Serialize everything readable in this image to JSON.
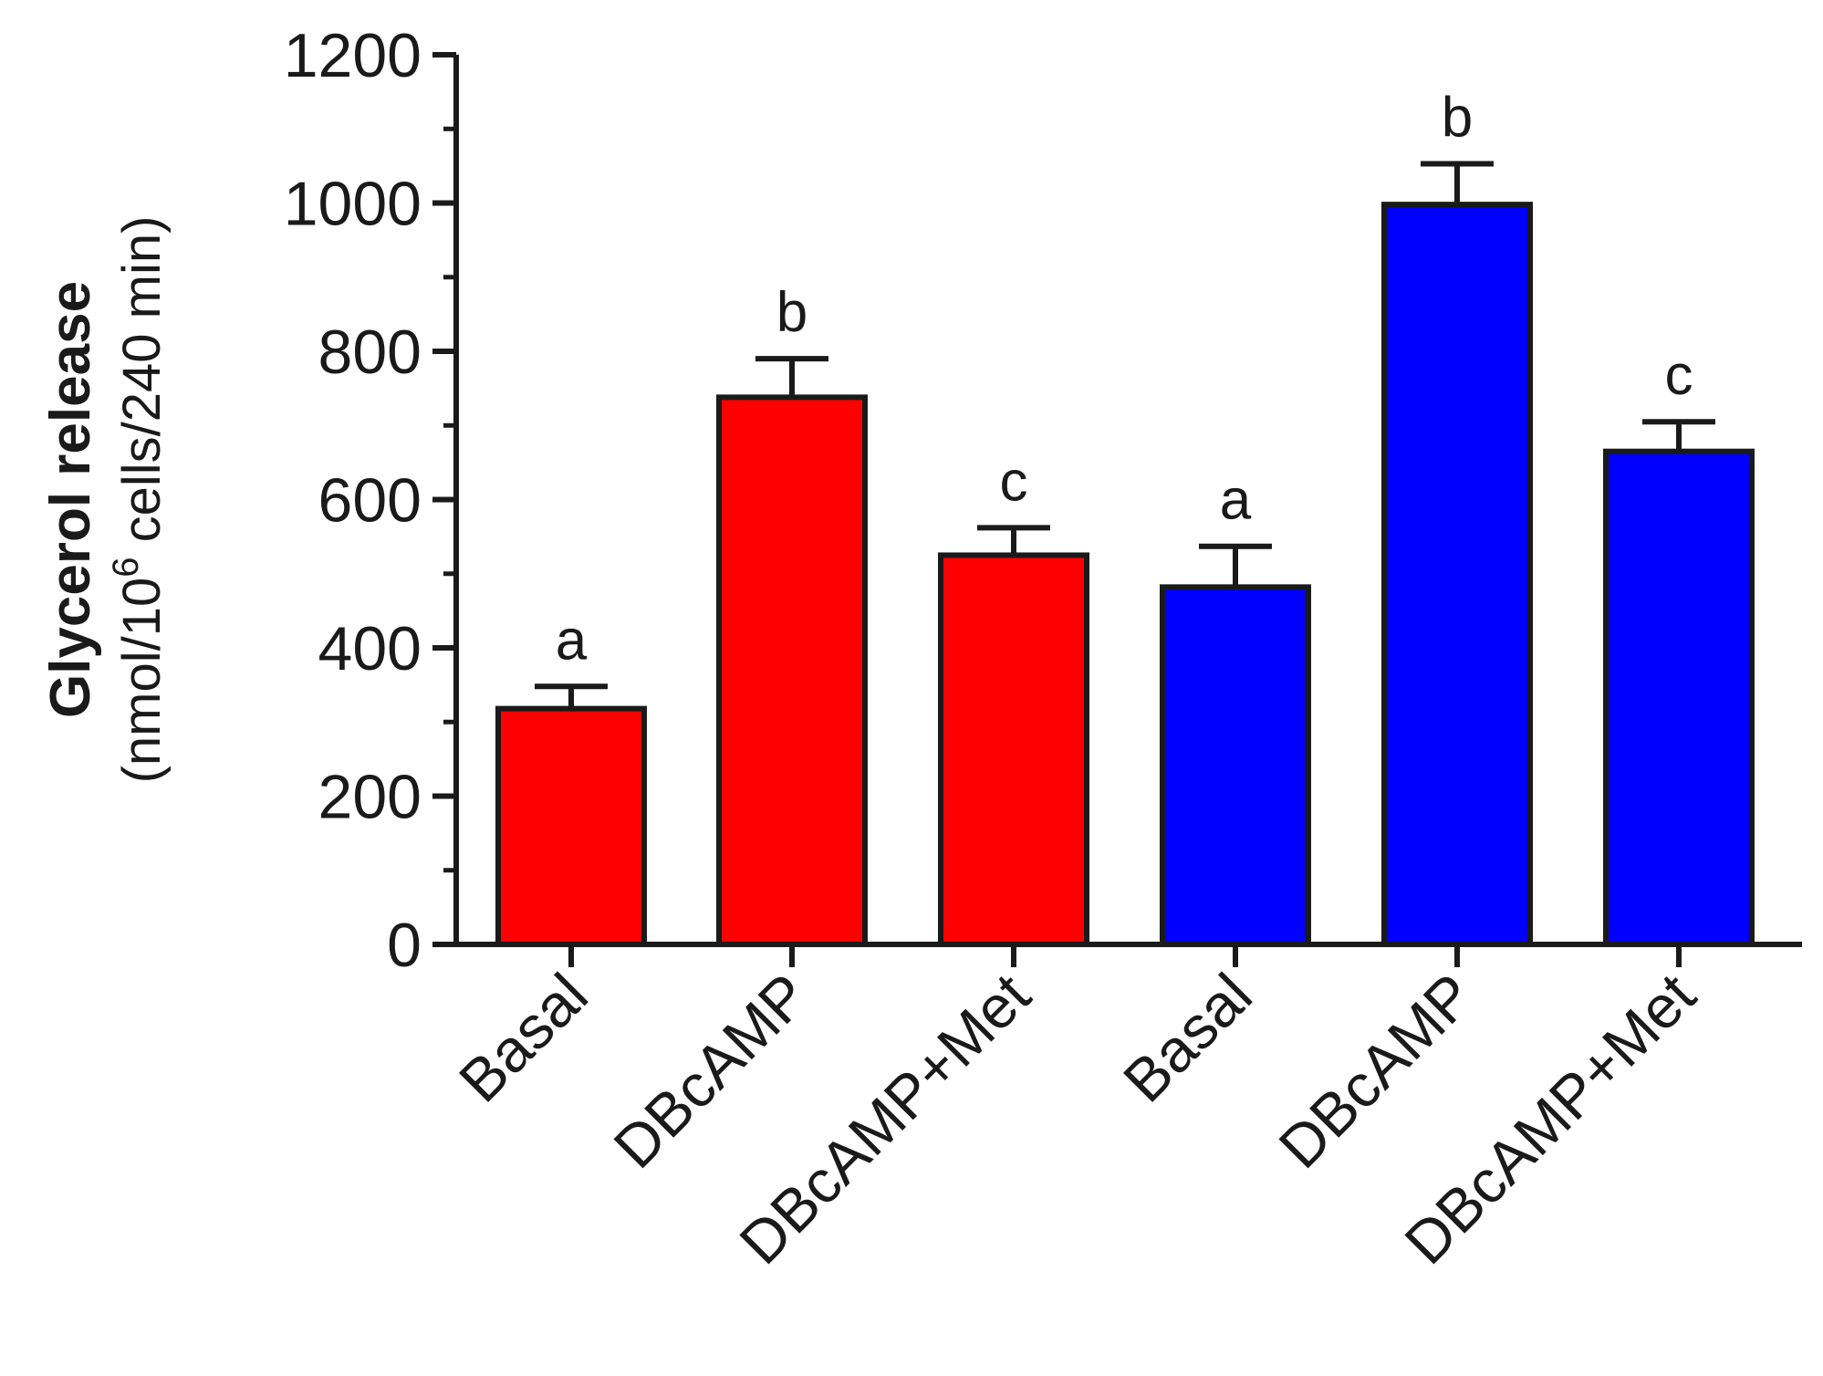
{
  "chart_data": {
    "type": "bar",
    "categories": [
      "Basal",
      "DBcAMP",
      "DBcAMP+Met",
      "Basal",
      "DBcAMP",
      "DBcAMP+Met"
    ],
    "values": [
      318,
      738,
      525,
      482,
      998,
      665
    ],
    "errors": [
      30,
      52,
      37,
      55,
      55,
      40
    ],
    "significance": [
      "a",
      "b",
      "c",
      "a",
      "b",
      "c"
    ],
    "bar_colors": [
      "#ff0000",
      "#ff0000",
      "#ff0000",
      "#0000ff",
      "#0000ff",
      "#0000ff"
    ],
    "ylabel": "Glycerol release",
    "ylabel_unit_prefix": "(nmol/10",
    "ylabel_unit_sup": "6",
    "ylabel_unit_suffix": " cells/240 min)",
    "ylim": [
      0,
      1200
    ],
    "yticks": [
      "0",
      "200",
      "400",
      "600",
      "800",
      "1000",
      "1200"
    ],
    "grid": false
  }
}
